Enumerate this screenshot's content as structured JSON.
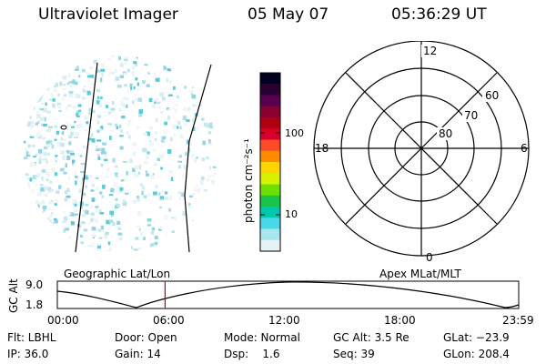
{
  "header": {
    "instrument": "Ultraviolet Imager",
    "date": "05 May 07",
    "time": "05:36:29 UT"
  },
  "colorbar": {
    "unit_label": "photon cm⁻²s⁻¹",
    "ticks": [
      "100",
      "10"
    ],
    "colors": [
      "#000020",
      "#2a0030",
      "#5a0050",
      "#8a0030",
      "#b00010",
      "#d8002a",
      "#ff4a2a",
      "#ff8a00",
      "#ffd400",
      "#d6f200",
      "#6ee000",
      "#18c44a",
      "#00c8b0",
      "#48d8e8",
      "#a8e6f0",
      "#e6f4f7"
    ]
  },
  "polar_plot": {
    "mlt_labels": {
      "top": "12",
      "left": "18",
      "right": "6",
      "bottom": "0"
    },
    "mlat_labels": [
      "60",
      "70",
      "80"
    ]
  },
  "timeline": {
    "left_title": "Geographic Lat/Lon",
    "right_title": "Apex MLat/MLT",
    "y_label": "GC Alt",
    "y_ticks": [
      "9.0",
      "1.8"
    ],
    "x_ticks": [
      "00:00",
      "06:00",
      "12:00",
      "18:00",
      "23:59"
    ],
    "current_time_fraction": 0.2336
  },
  "status": {
    "filter": "Flt: LBHL",
    "ip": "IP: 36.0",
    "door": "Door: Open",
    "gain": "Gain: 14",
    "mode": "Mode: Normal",
    "dsp": "Dsp:    1.6",
    "gc_alt": "GC Alt: 3.5 Re",
    "seq": "Seq: 39",
    "glat": "GLat: −23.9",
    "glon": "GLon: 208.4"
  }
}
